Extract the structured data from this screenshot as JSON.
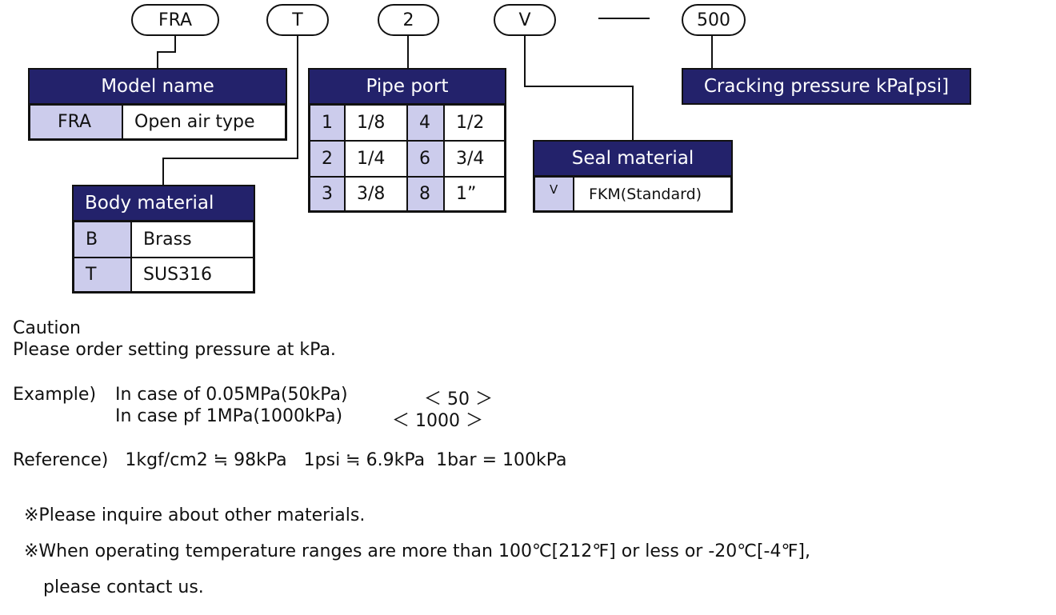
{
  "code": {
    "model": "FRA",
    "body": "T",
    "port": "2",
    "seal": "V",
    "dash": "—",
    "pressure": "500"
  },
  "model_table": {
    "title": "Model name",
    "rows": [
      {
        "key": "FRA",
        "value": "Open air type"
      }
    ]
  },
  "body_table": {
    "title": "Body material",
    "rows": [
      {
        "key": "B",
        "value": "Brass"
      },
      {
        "key": "T",
        "value": "SUS316"
      }
    ]
  },
  "port_table": {
    "title": "Pipe port",
    "rows": [
      {
        "k1": "1",
        "v1": "1/8",
        "k2": "4",
        "v2": "1/2"
      },
      {
        "k1": "2",
        "v1": "1/4",
        "k2": "6",
        "v2": "3/4"
      },
      {
        "k1": "3",
        "v1": "3/8",
        "k2": "8",
        "v2": "1”"
      }
    ]
  },
  "seal_table": {
    "title": "Seal material",
    "rows": [
      {
        "key": "V",
        "value": "FKM(Standard)"
      }
    ]
  },
  "pressure_box": {
    "title": "Cracking pressure kPa[psi]"
  },
  "notes": {
    "caution": "Caution",
    "caution_text": "Please order setting pressure at kPa.",
    "example_label": "Example)",
    "example1": "In case of 0.05MPa(50kPa)",
    "example1_code": "＜ 50 ＞",
    "example2": "In case pf 1MPa(1000kPa)",
    "example2_code": "＜ 1000 ＞",
    "reference": "Reference)   1kgf/cm2 ≒ 98kPa   1psi ≒ 6.9kPa  1bar = 100kPa",
    "note1": "※Please inquire about other materials.",
    "note2": "※When operating temperature ranges are more than 100℃[212℉] or less or -20℃[-4℉],",
    "note3": "please contact us."
  },
  "colors": {
    "header": "#23226b",
    "key_cell": "#ccccec"
  }
}
